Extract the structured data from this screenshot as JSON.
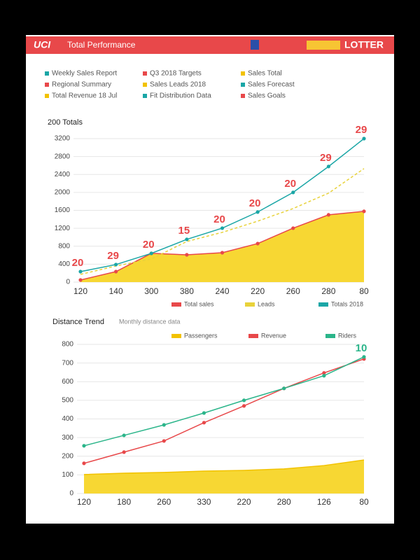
{
  "header": {
    "brand": "UCI",
    "title": "Total Performance",
    "logo": "LOTTER"
  },
  "info": [
    [
      "Weekly Sales Report",
      "Q3 2018 Targets",
      "Sales Total"
    ],
    [
      "Regional Summary",
      "Sales Leads 2018",
      "Sales Forecast"
    ],
    [
      "Total Revenue 18 Jul",
      "Fit Distribution Data",
      "Sales Goals"
    ]
  ],
  "chart_data": [
    {
      "type": "line",
      "title": "200 Totals",
      "categories": [
        "120",
        "140",
        "300",
        "380",
        "240",
        "220",
        "260",
        "280",
        "80"
      ],
      "ylim": [
        0,
        3200
      ],
      "yticks": [
        0,
        400,
        800,
        1200,
        1600,
        2000,
        2400,
        2800,
        3200
      ],
      "grid": true,
      "series": [
        {
          "name": "Total sales",
          "color": "#e8484a",
          "area": true,
          "area_color": "#f7d733",
          "markers": true,
          "dash": false,
          "values": [
            47,
            234,
            641,
            609,
            656,
            859,
            1203,
            1500,
            1578
          ]
        },
        {
          "name": "Leads",
          "color": "#e8d23a",
          "area": false,
          "markers": false,
          "dash": true,
          "values": [
            172,
            359,
            516,
            906,
            1109,
            1359,
            1641,
            1984,
            2531
          ]
        },
        {
          "name": "Totals 2018",
          "color": "#1aa6a6",
          "area": false,
          "markers": true,
          "dash": false,
          "values": [
            234,
            391,
            641,
            953,
            1203,
            1563,
            2000,
            2578,
            3200
          ]
        }
      ],
      "annotations": [
        "20",
        "29",
        "20",
        "15",
        "20",
        "20",
        "20",
        "29",
        "29"
      ]
    },
    {
      "type": "line",
      "title": "Distance Trend",
      "subtitle": "Monthly distance data",
      "categories": [
        "120",
        "180",
        "260",
        "330",
        "220",
        "280",
        "126",
        "80"
      ],
      "ylim": [
        0,
        800
      ],
      "yticks": [
        0,
        100,
        200,
        300,
        400,
        500,
        600,
        700,
        800
      ],
      "grid": true,
      "series": [
        {
          "name": "Passengers",
          "color": "#f2c200",
          "area": true,
          "area_color": "#f7d733",
          "markers": false,
          "dash": false,
          "values": [
            102,
            109,
            113,
            120,
            124,
            132,
            150,
            180
          ]
        },
        {
          "name": "Revenue",
          "color": "#e8484a",
          "area": false,
          "markers": true,
          "dash": false,
          "values": [
            162,
            222,
            282,
            380,
            470,
            564,
            647,
            722
          ]
        },
        {
          "name": "Riders",
          "color": "#2bb58a",
          "area": false,
          "markers": true,
          "dash": false,
          "values": [
            256,
            312,
            368,
            432,
            500,
            564,
            632,
            733
          ]
        }
      ],
      "annotations": [
        "10"
      ]
    }
  ]
}
